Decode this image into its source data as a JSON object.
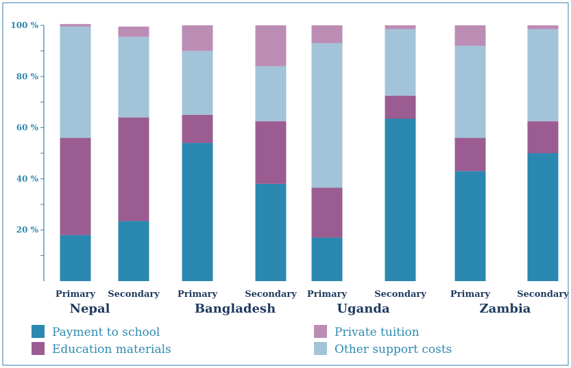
{
  "chart_data": {
    "type": "bar",
    "stacked": true,
    "y_tick_labels": [
      "20 %",
      "40 %",
      "60 %",
      "80 %",
      "100 %"
    ],
    "y_tick_values": [
      20,
      40,
      60,
      80,
      100
    ],
    "ylim": [
      0,
      100
    ],
    "groups": [
      {
        "name": "Nepal",
        "categories": [
          "Primary",
          "Secondary"
        ]
      },
      {
        "name": "Bangladesh",
        "categories": [
          "Primary",
          "Secondary"
        ]
      },
      {
        "name": "Uganda",
        "categories": [
          "Primary",
          "Secondary"
        ]
      },
      {
        "name": "Zambia",
        "categories": [
          "Primary",
          "Secondary"
        ]
      }
    ],
    "categories": [
      "Nepal Primary",
      "Nepal Secondary",
      "Bangladesh Primary",
      "Bangladesh Secondary",
      "Uganda Primary",
      "Uganda Secondary",
      "Zambia Primary",
      "Zambia Secondary"
    ],
    "series": [
      {
        "name": "Payment to school",
        "color": "#2b88b0",
        "values": [
          18,
          23.5,
          54,
          38,
          17,
          63.5,
          43,
          50
        ]
      },
      {
        "name": "Education materials",
        "color": "#9b5d91",
        "values": [
          38,
          40.5,
          11,
          24.5,
          19.5,
          9,
          13,
          12.5
        ]
      },
      {
        "name": "Other support costs",
        "color": "#a2c3d8",
        "values": [
          43.5,
          31.5,
          25,
          21.5,
          56.5,
          26,
          36,
          36
        ]
      },
      {
        "name": "Private tuition",
        "color": "#bb8db4",
        "values": [
          1,
          4,
          10,
          16,
          7,
          1.5,
          8,
          1.5
        ]
      }
    ],
    "legend_position": "bottom",
    "grid": false
  }
}
